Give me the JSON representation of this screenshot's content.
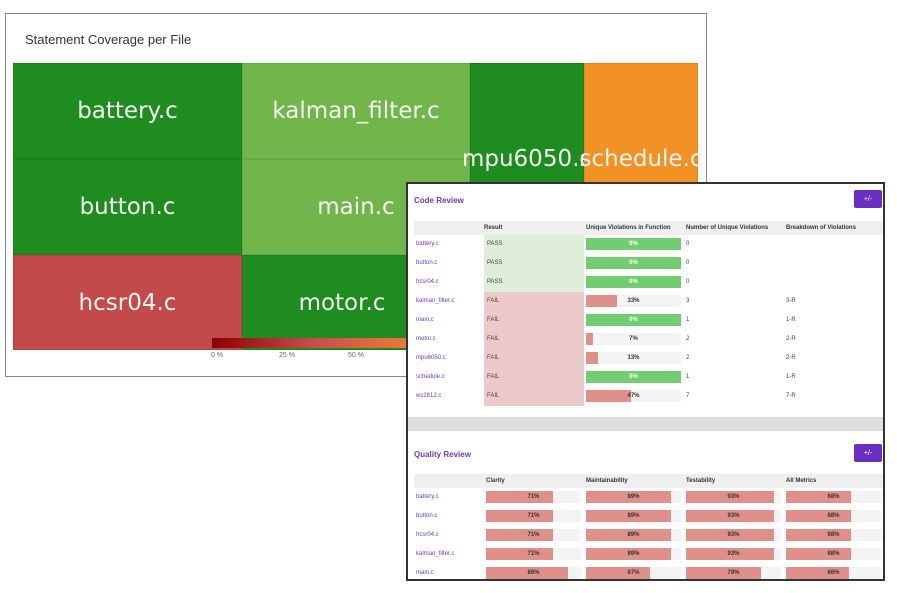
{
  "coverage": {
    "title": "Statement Coverage per File",
    "tiles": [
      {
        "name": "battery.c",
        "color": "#1f8c1f"
      },
      {
        "name": "button.c",
        "color": "#1f8c1f"
      },
      {
        "name": "hcsr04.c",
        "color": "#c24a4a"
      },
      {
        "name": "kalman_filter.c",
        "color": "#72b54a"
      },
      {
        "name": "main.c",
        "color": "#72b54a"
      },
      {
        "name": "motor.c",
        "color": "#1f8c1f"
      },
      {
        "name": "mpu6050.c",
        "color": "#1f8c1f"
      },
      {
        "name": "schedule.c",
        "color": "#f39224"
      }
    ],
    "legend_ticks": [
      "0 %",
      "25 %",
      "50 %"
    ]
  },
  "code_review": {
    "title": "Code Review",
    "toggle": "+/-",
    "columns": [
      "Result",
      "Unique Violations in Function",
      "Number of Unique Violations",
      "Breakdown of Violations"
    ],
    "rows": [
      {
        "file": "battery.c",
        "result": "PASS",
        "pct": 0,
        "label": "0%",
        "count": "0",
        "breakdown": ""
      },
      {
        "file": "button.c",
        "result": "PASS",
        "pct": 0,
        "label": "0%",
        "count": "0",
        "breakdown": ""
      },
      {
        "file": "hcsr04.c",
        "result": "PASS",
        "pct": 0,
        "label": "0%",
        "count": "0",
        "breakdown": ""
      },
      {
        "file": "kalman_filter.c",
        "result": "FAIL",
        "pct": 33,
        "label": "33%",
        "count": "3",
        "breakdown": "3-R"
      },
      {
        "file": "main.c",
        "result": "FAIL",
        "pct": 0,
        "label": "0%",
        "count": "1",
        "breakdown": "1-R"
      },
      {
        "file": "motor.c",
        "result": "FAIL",
        "pct": 7,
        "label": "7%",
        "count": "2",
        "breakdown": "2-R"
      },
      {
        "file": "mpu6050.c",
        "result": "FAIL",
        "pct": 13,
        "label": "13%",
        "count": "2",
        "breakdown": "2-R"
      },
      {
        "file": "schedule.c",
        "result": "FAIL",
        "pct": 0,
        "label": "0%",
        "count": "1",
        "breakdown": "1-R"
      },
      {
        "file": "ws2812.c",
        "result": "FAIL",
        "pct": 47,
        "label": "47%",
        "count": "7",
        "breakdown": "7-R"
      }
    ]
  },
  "quality_review": {
    "title": "Quality Review",
    "toggle": "+/-",
    "columns": [
      "Clarity",
      "Maintainability",
      "Testability",
      "All Metrics"
    ],
    "rows": [
      {
        "file": "battery.c",
        "values": [
          71,
          89,
          93,
          68
        ],
        "labels": [
          "71%",
          "89%",
          "93%",
          "68%"
        ]
      },
      {
        "file": "button.c",
        "values": [
          71,
          89,
          93,
          68
        ],
        "labels": [
          "71%",
          "89%",
          "93%",
          "68%"
        ]
      },
      {
        "file": "hcsr04.c",
        "values": [
          71,
          89,
          93,
          68
        ],
        "labels": [
          "71%",
          "89%",
          "93%",
          "68%"
        ]
      },
      {
        "file": "kalman_filter.c",
        "values": [
          71,
          89,
          93,
          68
        ],
        "labels": [
          "71%",
          "89%",
          "93%",
          "68%"
        ]
      },
      {
        "file": "main.c",
        "values": [
          86,
          67,
          79,
          66
        ],
        "labels": [
          "86%",
          "67%",
          "79%",
          "66%"
        ]
      }
    ]
  },
  "colors": {
    "pass_bg": "#dfeed8",
    "fail_bg": "#ecc9cb",
    "green_bar": "#72cc72",
    "red_bar": "#e0908a",
    "accent": "#6a2fc0"
  }
}
